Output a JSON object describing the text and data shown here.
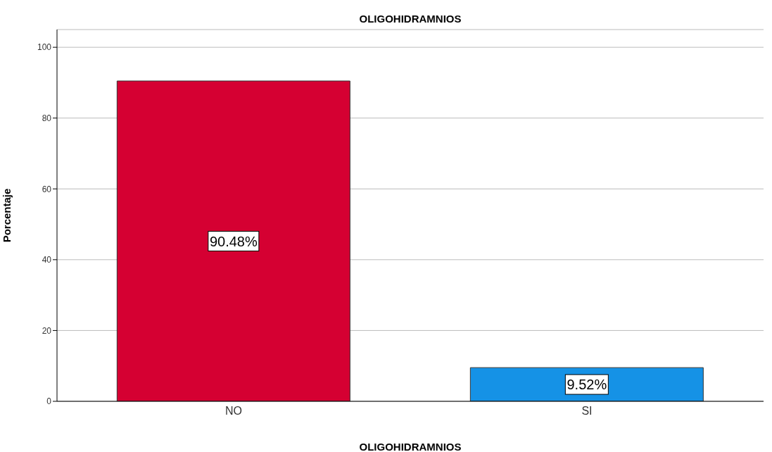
{
  "chart_data": {
    "type": "bar",
    "title": "OLIGOHIDRAMNIOS",
    "xlabel": "OLIGOHIDRAMNIOS",
    "ylabel": "Porcentaje",
    "categories": [
      "NO",
      "SI"
    ],
    "values": [
      90.48,
      9.52
    ],
    "colors": [
      "#d50032",
      "#1592e6"
    ],
    "value_labels": [
      "90.48%",
      "9.52%"
    ],
    "ylim": [
      0,
      105
    ],
    "yticks": [
      0,
      20,
      40,
      60,
      80,
      100
    ],
    "grid": "y"
  }
}
